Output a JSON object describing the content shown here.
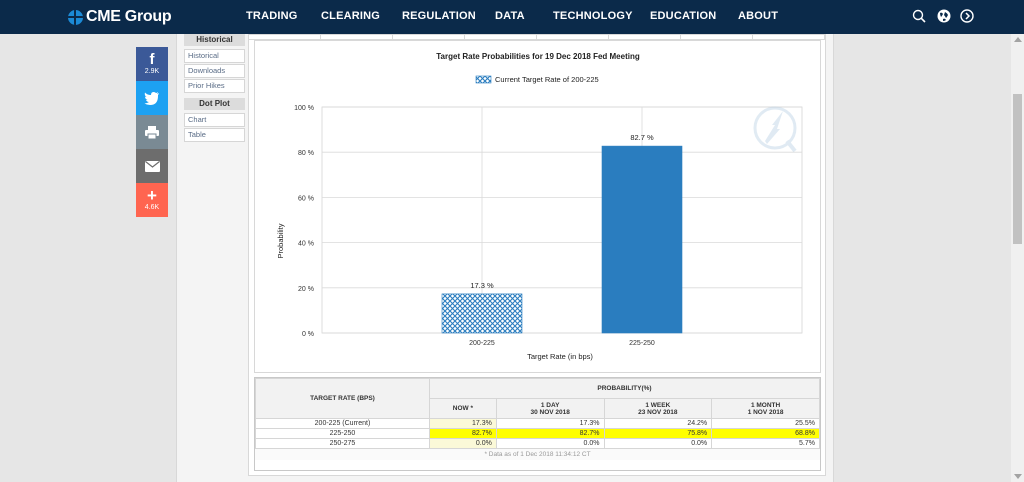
{
  "header": {
    "logo": "CME Group",
    "nav": [
      "TRADING",
      "CLEARING",
      "REGULATION",
      "DATA",
      "TECHNOLOGY",
      "EDUCATION",
      "ABOUT"
    ],
    "icons": [
      "search-icon",
      "globe-icon",
      "arrow-circle-icon"
    ]
  },
  "social": {
    "facebook_count": "2.9K",
    "share_count": "4.6K"
  },
  "sidebar": {
    "historical_header": "Historical",
    "historical_links": [
      "Historical",
      "Downloads",
      "Prior Hikes"
    ],
    "dotplot_header": "Dot Plot",
    "dotplot_links": [
      "Chart",
      "Table"
    ]
  },
  "chart_data": {
    "type": "bar",
    "title": "Target Rate Probabilities for 19 Dec 2018 Fed Meeting",
    "legend": "Current Target Rate of 200-225",
    "xlabel": "Target Rate (in bps)",
    "ylabel": "Probability",
    "categories": [
      "200-225",
      "225-250"
    ],
    "values": [
      17.3,
      82.7
    ],
    "value_labels": [
      "17.3 %",
      "82.7 %"
    ],
    "yticks": [
      "0 %",
      "20 %",
      "40 %",
      "60 %",
      "80 %",
      "100 %"
    ],
    "ylim": [
      0,
      100
    ],
    "colors": {
      "current": "#2a7dbf",
      "bar": "#2a7dbf"
    },
    "grid": true
  },
  "table": {
    "col_target": "TARGET RATE (BPS)",
    "col_prob": "PROBABILITY(%)",
    "subheaders": [
      "NOW *",
      "1 DAY",
      "1 WEEK",
      "1 MONTH"
    ],
    "subdates": [
      "",
      "30 NOV 2018",
      "23 NOV 2018",
      "1 NOV 2018"
    ],
    "rows": [
      {
        "rate": "200-225 (Current)",
        "vals": [
          "17.3%",
          "17.3%",
          "24.2%",
          "25.5%"
        ]
      },
      {
        "rate": "225-250",
        "vals": [
          "82.7%",
          "82.7%",
          "75.8%",
          "68.8%"
        ]
      },
      {
        "rate": "250-275",
        "vals": [
          "0.0%",
          "0.0%",
          "0.0%",
          "5.7%"
        ]
      }
    ],
    "footnote": "* Data as of 1 Dec 2018 11:34:12 CT"
  }
}
